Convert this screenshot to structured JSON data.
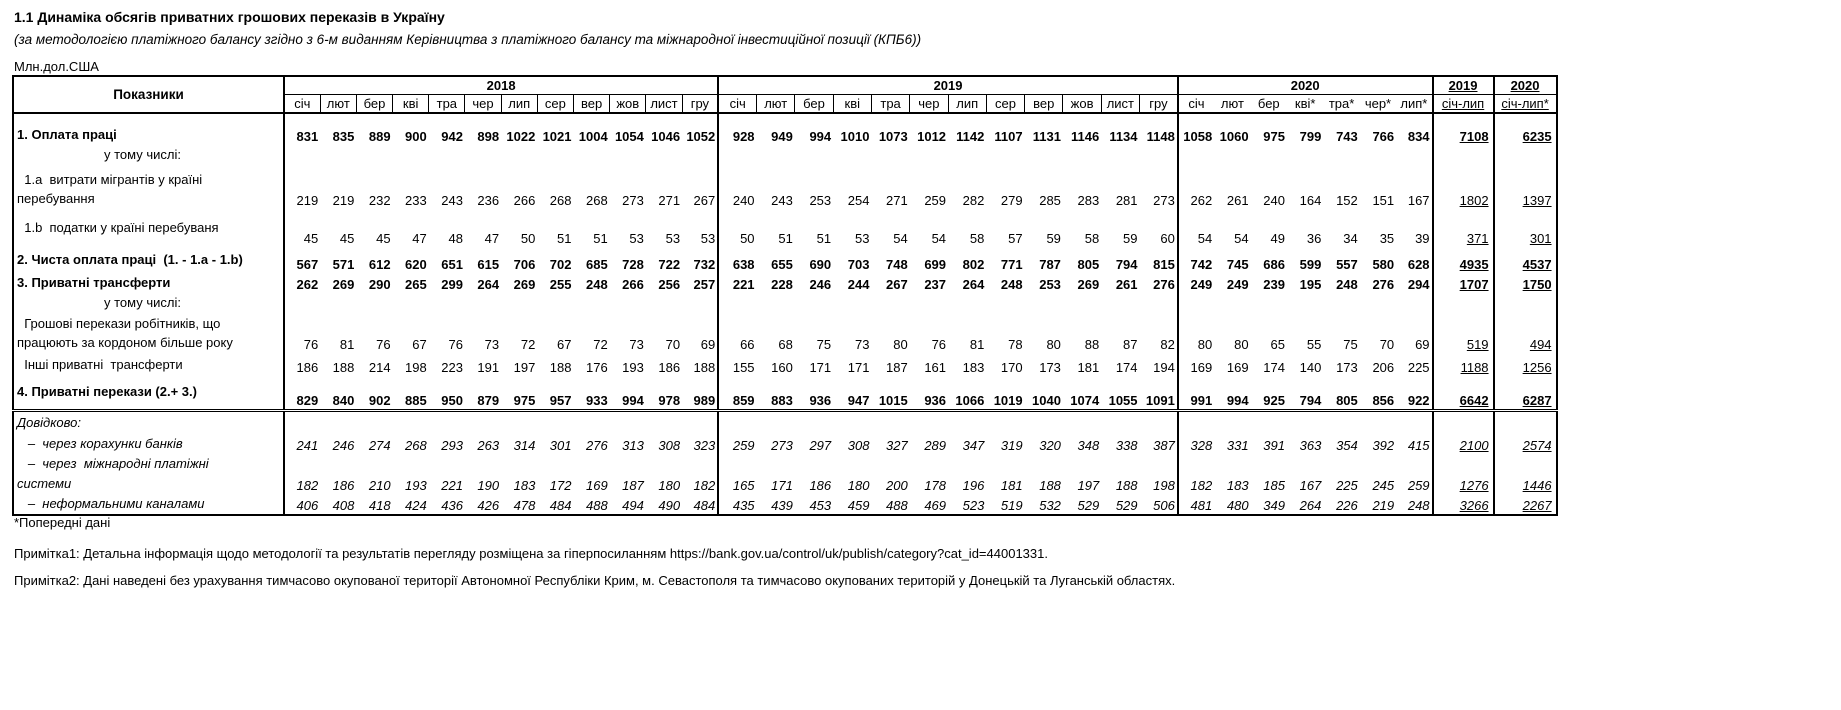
{
  "title": "1.1 Динаміка обсягів приватних грошових переказів в Україну",
  "subtitle": "(за методологією платіжного балансу згідно з 6-м виданням Керівництва з платіжного балансу та міжнародної інвестиційної позиції (КПБ6))",
  "units": "Млн.дол.США",
  "table": {
    "header_label": "Показники",
    "years": [
      "2018",
      "2019",
      "2020"
    ],
    "months_2018": [
      "січ",
      "лют",
      "бер",
      "кві",
      "тра",
      "чер",
      "лип",
      "сер",
      "вер",
      "жов",
      "лист",
      "гру"
    ],
    "months_2019": [
      "січ",
      "лют",
      "бер",
      "кві",
      "тра",
      "чер",
      "лип",
      "сер",
      "вер",
      "жов",
      "лист",
      "гру"
    ],
    "months_2020": [
      "січ",
      "лют",
      "бер",
      "кві*",
      "тра*",
      "чер*",
      "лип*"
    ],
    "sum_years": [
      "2019",
      "2020"
    ],
    "sum_periods": [
      "січ-лип",
      "січ-лип*"
    ],
    "rows": [
      {
        "label": [
          "1. Оплата праці"
        ],
        "style": "bold",
        "values": [
          831,
          835,
          889,
          900,
          942,
          898,
          1022,
          1021,
          1004,
          1054,
          1046,
          1052,
          928,
          949,
          994,
          1010,
          1073,
          1012,
          1142,
          1107,
          1131,
          1146,
          1134,
          1148,
          1058,
          1060,
          975,
          799,
          743,
          766,
          834
        ],
        "sums": [
          7108,
          6235
        ]
      },
      {
        "label": [
          "у тому числі:"
        ],
        "style": "center",
        "values": [],
        "sums": []
      },
      {
        "label": [
          "  1.a  витрати мігрантів у країні",
          "перебування"
        ],
        "style": "normal",
        "values": [
          219,
          219,
          232,
          233,
          243,
          236,
          266,
          268,
          268,
          273,
          271,
          267,
          240,
          243,
          253,
          254,
          271,
          259,
          282,
          279,
          285,
          283,
          281,
          273,
          262,
          261,
          240,
          164,
          152,
          151,
          167
        ],
        "sums": [
          1802,
          1397
        ]
      },
      {
        "label": [
          "  1.b  податки у країні перебуваня"
        ],
        "style": "normal",
        "values": [
          45,
          45,
          45,
          47,
          48,
          47,
          50,
          51,
          51,
          53,
          53,
          53,
          50,
          51,
          51,
          53,
          54,
          54,
          58,
          57,
          59,
          58,
          59,
          60,
          54,
          54,
          49,
          36,
          34,
          35,
          39
        ],
        "sums": [
          371,
          301
        ]
      },
      {
        "label": [
          "2. Чиста оплата праці  (1. - 1.a - 1.b)"
        ],
        "style": "bold",
        "values": [
          567,
          571,
          612,
          620,
          651,
          615,
          706,
          702,
          685,
          728,
          722,
          732,
          638,
          655,
          690,
          703,
          748,
          699,
          802,
          771,
          787,
          805,
          794,
          815,
          742,
          745,
          686,
          599,
          557,
          580,
          628
        ],
        "sums": [
          4935,
          4537
        ]
      },
      {
        "label": [
          "3. Приватні трансферти"
        ],
        "style": "bold",
        "values": [
          262,
          269,
          290,
          265,
          299,
          264,
          269,
          255,
          248,
          266,
          256,
          257,
          221,
          228,
          246,
          244,
          267,
          237,
          264,
          248,
          253,
          269,
          261,
          276,
          249,
          249,
          239,
          195,
          248,
          276,
          294
        ],
        "sums": [
          1707,
          1750
        ]
      },
      {
        "label": [
          "у тому числі:"
        ],
        "style": "center",
        "values": [],
        "sums": []
      },
      {
        "label": [
          "  Грошові перекази робітників, що",
          "працюють за кордоном більше року"
        ],
        "style": "normal",
        "values": [
          76,
          81,
          76,
          67,
          76,
          73,
          72,
          67,
          72,
          73,
          70,
          69,
          66,
          68,
          75,
          73,
          80,
          76,
          81,
          78,
          80,
          88,
          87,
          82,
          80,
          80,
          65,
          55,
          75,
          70,
          69
        ],
        "sums": [
          519,
          494
        ]
      },
      {
        "label": [
          "  Інші приватні  трансферти"
        ],
        "style": "normal",
        "values": [
          186,
          188,
          214,
          198,
          223,
          191,
          197,
          188,
          176,
          193,
          186,
          188,
          155,
          160,
          171,
          171,
          187,
          161,
          183,
          170,
          173,
          181,
          174,
          194,
          169,
          169,
          174,
          140,
          173,
          206,
          225
        ],
        "sums": [
          1188,
          1256
        ]
      },
      {
        "label": [
          "4. Приватні перекази (2.+ 3.)"
        ],
        "style": "bold",
        "values": [
          829,
          840,
          902,
          885,
          950,
          879,
          975,
          957,
          933,
          994,
          978,
          989,
          859,
          883,
          936,
          947,
          1015,
          936,
          1066,
          1019,
          1040,
          1074,
          1055,
          1091,
          991,
          994,
          925,
          794,
          805,
          856,
          922
        ],
        "sums": [
          6642,
          6287
        ]
      },
      {
        "label": [
          "Довідково:"
        ],
        "style": "italic",
        "values": [],
        "sums": []
      },
      {
        "label": [
          "   –  через корахунки банків"
        ],
        "style": "italic",
        "values": [
          241,
          246,
          274,
          268,
          293,
          263,
          314,
          301,
          276,
          313,
          308,
          323,
          259,
          273,
          297,
          308,
          327,
          289,
          347,
          319,
          320,
          348,
          338,
          387,
          328,
          331,
          391,
          363,
          354,
          392,
          415
        ],
        "sums": [
          2100,
          2574
        ]
      },
      {
        "label": [
          "   –  через  міжнародні платіжні"
        ],
        "style": "italic",
        "values": [],
        "sums": []
      },
      {
        "label": [
          "системи"
        ],
        "style": "italic",
        "values": [
          182,
          186,
          210,
          193,
          221,
          190,
          183,
          172,
          169,
          187,
          180,
          182,
          165,
          171,
          186,
          180,
          200,
          178,
          196,
          181,
          188,
          197,
          188,
          198,
          182,
          183,
          185,
          167,
          225,
          245,
          259
        ],
        "sums": [
          1276,
          1446
        ]
      },
      {
        "label": [
          "   –  неформальними каналами"
        ],
        "style": "italic",
        "values": [
          406,
          408,
          418,
          424,
          436,
          426,
          478,
          484,
          488,
          494,
          490,
          484,
          435,
          439,
          453,
          459,
          488,
          469,
          523,
          519,
          532,
          529,
          529,
          506,
          481,
          480,
          349,
          264,
          226,
          219,
          248
        ],
        "sums": [
          3266,
          2267
        ]
      }
    ]
  },
  "notes": {
    "preliminary": "*Попередні дані",
    "note1": "Примітка1:  Детальна інформація щодо методології та результатів перегляду розміщена за гіперпосиланням https://bank.gov.ua/control/uk/publish/category?cat_id=44001331.",
    "note2": "Примітка2: Дані наведені без урахування тимчасово окупованої території Автономної Республіки Крим, м. Севастополя та тимчасово окупованих територій у Донецькій та Луганській областях."
  }
}
